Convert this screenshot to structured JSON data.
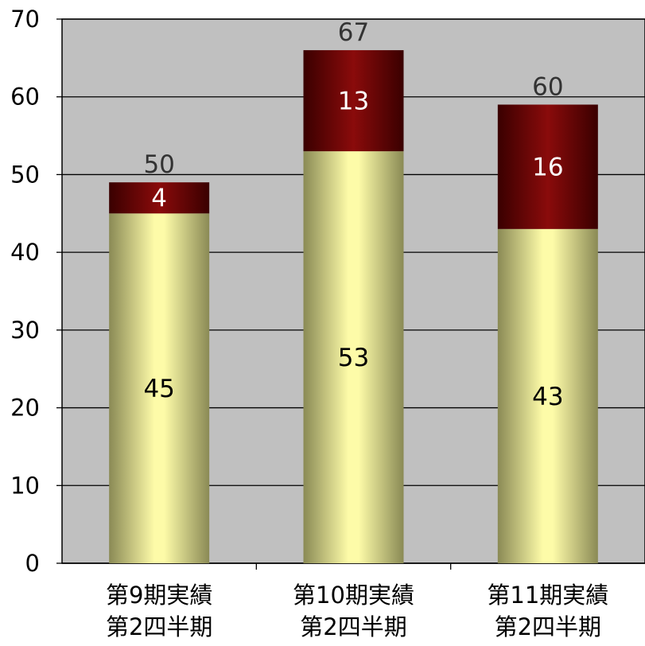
{
  "chart_data": {
    "type": "bar",
    "stacked": true,
    "categories": [
      [
        "第9期実績",
        "第2四半期"
      ],
      [
        "第10期実績",
        "第2四半期"
      ],
      [
        "第11期実績",
        "第2四半期"
      ]
    ],
    "series": [
      {
        "values": [
          45,
          53,
          43
        ],
        "color": "#f2ef9a"
      },
      {
        "values": [
          4,
          13,
          16
        ],
        "color": "#7a0a0a"
      }
    ],
    "totals": [
      50,
      67,
      60
    ],
    "ylim": [
      0,
      70
    ],
    "yticks": [
      0,
      10,
      20,
      30,
      40,
      50,
      60,
      70
    ],
    "grid": true,
    "plot_background": "#c0c0c0",
    "title": "",
    "xlabel": "",
    "ylabel": ""
  }
}
